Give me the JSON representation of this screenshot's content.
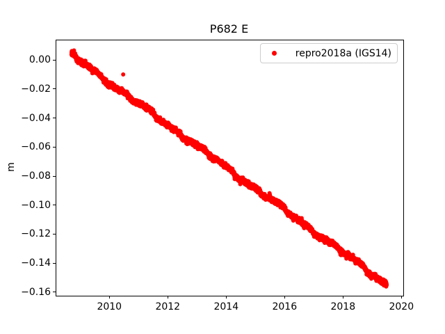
{
  "chart_data": {
    "type": "scatter",
    "title": "P682 E",
    "xlabel": "",
    "ylabel": "m",
    "xlim": [
      2008.16,
      2020.04
    ],
    "ylim": [
      -0.162,
      0.014
    ],
    "grid": false,
    "background_color": "#ffffff",
    "axis_color": "#000000",
    "xticks": [
      2010,
      2012,
      2014,
      2016,
      2018,
      2020
    ],
    "xtick_labels": [
      "2010",
      "2012",
      "2014",
      "2016",
      "2018",
      "2020"
    ],
    "yticks": [
      0.0,
      -0.02,
      -0.04,
      -0.06,
      -0.08,
      -0.1,
      -0.12,
      -0.14,
      -0.16
    ],
    "ytick_labels": [
      "0.00",
      "−0.02",
      "−0.04",
      "−0.06",
      "−0.08",
      "−0.10",
      "−0.12",
      "−0.14",
      "−0.16"
    ],
    "legend": {
      "location": "upper right",
      "entries": [
        {
          "label": "repro2018a (IGS14)",
          "color": "#ff0000",
          "marker": "dot"
        }
      ]
    },
    "series": [
      {
        "name": "repro2018a (IGS14)",
        "color": "#ff0000",
        "marker": "dot",
        "marker_size_px": 6,
        "n_points": 3900,
        "x_start": 2008.68,
        "x_end": 2019.47,
        "y_start_m": 0.004,
        "y_end_m": -0.154,
        "slope_m_per_year": -0.01464,
        "noise_std_m": 0.0008,
        "wiggle_amplitude_m": 0.0015,
        "outliers": [
          {
            "x": 2010.45,
            "y": -0.0095
          }
        ]
      }
    ]
  }
}
